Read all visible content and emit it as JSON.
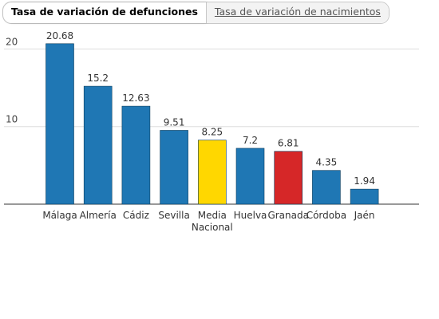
{
  "tabs": [
    {
      "label": "Tasa de variación de defunciones",
      "active": true
    },
    {
      "label": "Tasa de variación de nacimientos",
      "active": false
    }
  ],
  "chart_data": {
    "type": "bar",
    "title": "",
    "xlabel": "",
    "ylabel": "",
    "ylim": [
      0,
      24
    ],
    "yticks": [
      10,
      20
    ],
    "grid": true,
    "categories": [
      [
        "Málaga"
      ],
      [
        "Almería"
      ],
      [
        "Cádiz"
      ],
      [
        "Sevilla"
      ],
      [
        "Media",
        "Nacional"
      ],
      [
        "Huelva"
      ],
      [
        "Granada"
      ],
      [
        "Córdoba"
      ],
      [
        "Jaén"
      ]
    ],
    "values": [
      20.68,
      15.2,
      12.63,
      9.51,
      8.25,
      7.2,
      6.81,
      4.35,
      1.94
    ],
    "value_labels": [
      "20.68",
      "15.2",
      "12.63",
      "9.51",
      "8.25",
      "7.2",
      "6.81",
      "4.35",
      "1.94"
    ],
    "colors": [
      "#1f77b4",
      "#1f77b4",
      "#1f77b4",
      "#1f77b4",
      "#ffd700",
      "#1f77b4",
      "#d62728",
      "#1f77b4",
      "#1f77b4"
    ]
  }
}
